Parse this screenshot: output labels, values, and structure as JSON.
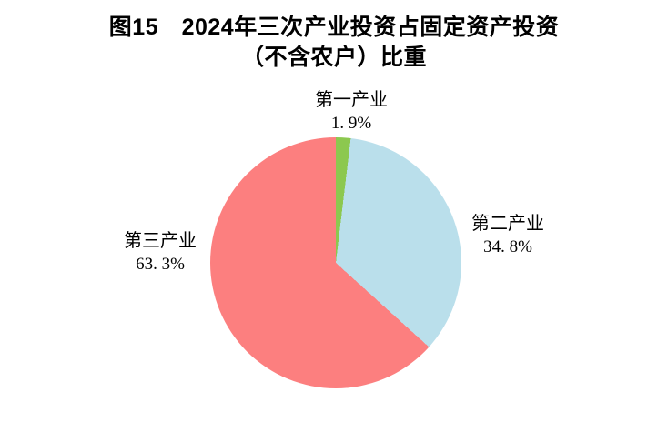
{
  "title": {
    "line1": "图15　2024年三次产业投资占固定资产投资",
    "line2": "（不含农户）比重"
  },
  "chart_data": {
    "type": "pie",
    "title": "图15 2024年三次产业投资占固定资产投资（不含农户）比重",
    "start_angle_deg": 0,
    "direction": "clockwise",
    "label_position": "outside",
    "legend": "none",
    "background_color": "#ffffff",
    "slices": [
      {
        "name": "第一产业",
        "value": 1.9,
        "value_label": "1. 9%",
        "color": "#8CC84F"
      },
      {
        "name": "第二产业",
        "value": 34.8,
        "value_label": "34. 8%",
        "color": "#BADFEB"
      },
      {
        "name": "第三产业",
        "value": 63.3,
        "value_label": "63. 3%",
        "color": "#FC7F7F"
      }
    ]
  }
}
